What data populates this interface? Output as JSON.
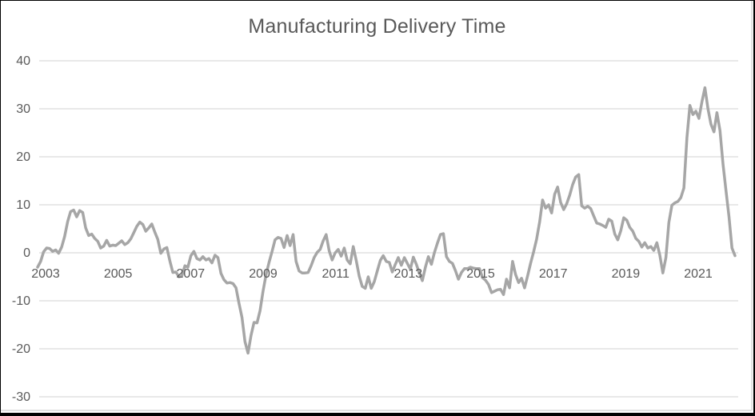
{
  "window": {
    "background": "#ffffff",
    "border_color": "#000000"
  },
  "chart_data": {
    "type": "line",
    "title": "Manufacturing Delivery Time",
    "legend": "none",
    "grid": "horizontal",
    "xlabel": "",
    "ylabel": "",
    "ylim": [
      -30,
      40
    ],
    "y_ticks": [
      40,
      30,
      20,
      10,
      0,
      -10,
      -20,
      -30
    ],
    "x_tick_labels": [
      "2003",
      "2005",
      "2007",
      "2009",
      "2011",
      "2013",
      "2015",
      "2017",
      "2019",
      "2021"
    ],
    "line_color": "#a6a6a6",
    "gridline_color": "#d9d9d9",
    "text_color": "#595959",
    "series": [
      {
        "name": "Manufacturing Delivery Time",
        "frequency": "monthly",
        "start": "2003",
        "end": "2022",
        "values": [
          -3.0,
          -1.8,
          0.2,
          1.0,
          0.9,
          0.3,
          0.6,
          -0.1,
          1.2,
          3.4,
          6.5,
          8.6,
          8.9,
          7.5,
          8.8,
          8.4,
          5.2,
          3.6,
          3.9,
          3.0,
          2.4,
          1.0,
          1.4,
          2.6,
          1.4,
          1.6,
          1.5,
          2.0,
          2.5,
          1.7,
          2.1,
          2.9,
          4.2,
          5.5,
          6.4,
          5.9,
          4.5,
          5.2,
          6.0,
          4.3,
          2.8,
          -0.1,
          0.8,
          1.1,
          -1.7,
          -4.1,
          -4.0,
          -5.0,
          -4.8,
          -2.7,
          -3.0,
          -0.6,
          0.3,
          -1.2,
          -1.5,
          -0.8,
          -1.5,
          -1.2,
          -2.1,
          -0.5,
          -1.0,
          -4.3,
          -5.6,
          -6.3,
          -6.2,
          -6.4,
          -7.3,
          -10.5,
          -13.5,
          -18.5,
          -20.9,
          -17.2,
          -14.5,
          -14.6,
          -12.1,
          -8.0,
          -4.5,
          -2.0,
          0.3,
          2.7,
          3.2,
          3.0,
          1.1,
          3.6,
          1.5,
          3.8,
          -1.8,
          -3.8,
          -4.2,
          -4.2,
          -4.1,
          -2.7,
          -1.0,
          0.1,
          0.7,
          2.5,
          3.8,
          0.4,
          -1.5,
          0.0,
          0.7,
          -0.7,
          1.0,
          -1.5,
          -2.3,
          1.3,
          -1.6,
          -4.9,
          -7.0,
          -7.4,
          -5.0,
          -7.4,
          -6.0,
          -3.8,
          -1.6,
          -0.6,
          -1.8,
          -2.0,
          -4.0,
          -2.4,
          -1.0,
          -2.6,
          -1.0,
          -2.2,
          -3.4,
          -0.9,
          -2.4,
          -4.2,
          -5.8,
          -3.0,
          -0.8,
          -2.4,
          0.0,
          2.0,
          3.8,
          4.0,
          -0.8,
          -1.8,
          -2.2,
          -3.7,
          -5.5,
          -4.1,
          -3.3,
          -3.3,
          -3.0,
          -3.2,
          -3.3,
          -3.3,
          -5.2,
          -5.7,
          -6.6,
          -8.3,
          -8.0,
          -7.7,
          -7.6,
          -8.7,
          -5.5,
          -7.3,
          -1.8,
          -4.5,
          -6.2,
          -5.3,
          -7.3,
          -4.8,
          -2.2,
          0.2,
          2.8,
          6.4,
          11.0,
          9.3,
          10.0,
          8.3,
          12.2,
          13.7,
          10.5,
          9.0,
          10.2,
          12.0,
          14.2,
          15.8,
          16.3,
          9.8,
          9.3,
          9.7,
          9.2,
          7.7,
          6.2,
          6.0,
          5.7,
          5.3,
          7.0,
          6.6,
          3.9,
          2.7,
          4.6,
          7.3,
          6.8,
          5.3,
          4.5,
          3.0,
          2.4,
          1.2,
          2.1,
          1.0,
          1.3,
          0.5,
          2.1,
          -0.5,
          -4.2,
          -1.0,
          6.3,
          9.9,
          10.4,
          10.7,
          11.5,
          13.5,
          24.0,
          30.7,
          28.8,
          29.5,
          28.0,
          31.5,
          34.4,
          30.0,
          26.8,
          25.2,
          29.2,
          25.5,
          18.5,
          13.0,
          7.5,
          1.0,
          -0.6
        ]
      }
    ]
  }
}
